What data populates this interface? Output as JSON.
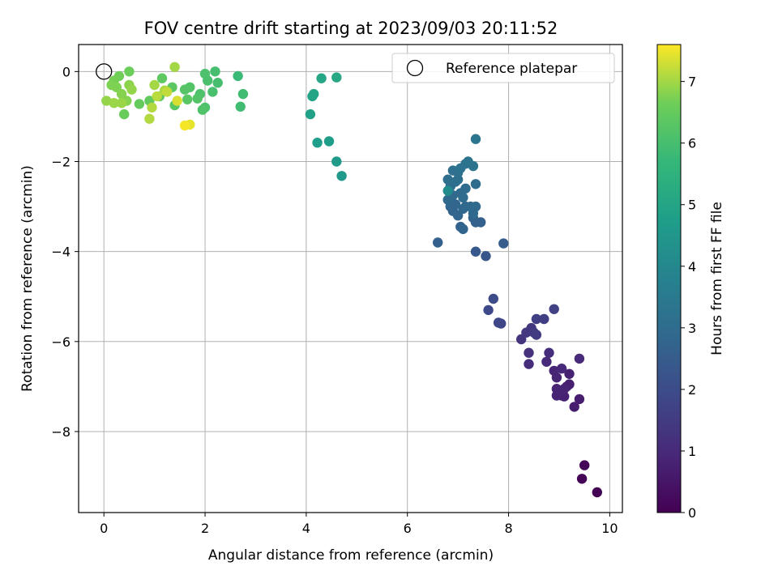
{
  "chart_data": {
    "type": "scatter",
    "title": "FOV centre drift starting at 2023/09/03 20:11:52",
    "xlabel": "Angular distance from reference (arcmin)",
    "ylabel": "Rotation from reference (arcmin)",
    "xlim": [
      -0.5,
      10.25
    ],
    "ylim": [
      -9.8,
      0.6
    ],
    "xticks": [
      0,
      2,
      4,
      6,
      8,
      10
    ],
    "yticks": [
      0,
      -2,
      -4,
      -6,
      -8
    ],
    "grid": true,
    "legend": {
      "label": "Reference platepar",
      "marker": "open-circle",
      "placement": "top-right"
    },
    "reference_point": {
      "x": 0,
      "y": 0
    },
    "colorbar": {
      "label": "Hours from first FF file",
      "colormap": "viridis",
      "range": [
        0,
        7.6
      ],
      "ticks": [
        0,
        1,
        2,
        3,
        4,
        5,
        6,
        7
      ]
    },
    "series": [
      {
        "points": [
          [
            9.75,
            -9.35,
            0.0
          ],
          [
            9.45,
            -9.05,
            0.05
          ],
          [
            9.5,
            -8.75,
            0.1
          ],
          [
            9.3,
            -7.45,
            0.7
          ],
          [
            9.4,
            -7.28,
            0.7
          ],
          [
            9.2,
            -6.95,
            0.75
          ],
          [
            9.15,
            -7.0,
            0.75
          ],
          [
            9.2,
            -6.72,
            0.8
          ],
          [
            9.05,
            -7.2,
            0.8
          ],
          [
            9.1,
            -7.22,
            0.8
          ],
          [
            8.95,
            -7.2,
            0.85
          ],
          [
            8.95,
            -7.05,
            0.85
          ],
          [
            9.1,
            -7.05,
            0.85
          ],
          [
            8.9,
            -6.65,
            0.9
          ],
          [
            8.95,
            -6.8,
            0.9
          ],
          [
            9.05,
            -6.6,
            0.95
          ],
          [
            8.75,
            -6.45,
            1.0
          ],
          [
            9.4,
            -6.38,
            1.0
          ],
          [
            8.8,
            -6.25,
            1.1
          ],
          [
            8.4,
            -6.5,
            1.1
          ],
          [
            8.4,
            -6.25,
            1.2
          ],
          [
            8.25,
            -5.95,
            1.3
          ],
          [
            8.35,
            -5.8,
            1.35
          ],
          [
            8.45,
            -5.7,
            1.4
          ],
          [
            8.55,
            -5.85,
            1.5
          ],
          [
            8.5,
            -5.8,
            1.5
          ],
          [
            8.7,
            -5.5,
            1.6
          ],
          [
            8.55,
            -5.5,
            1.6
          ],
          [
            8.9,
            -5.28,
            1.7
          ],
          [
            7.85,
            -5.6,
            1.8
          ],
          [
            7.8,
            -5.58,
            1.85
          ],
          [
            7.6,
            -5.3,
            1.9
          ],
          [
            7.7,
            -5.05,
            1.95
          ],
          [
            7.55,
            -4.1,
            2.3
          ],
          [
            7.35,
            -4.0,
            2.4
          ],
          [
            7.9,
            -3.82,
            2.5
          ],
          [
            6.6,
            -3.8,
            2.6
          ],
          [
            7.45,
            -3.35,
            2.6
          ],
          [
            7.35,
            -3.35,
            2.65
          ],
          [
            7.3,
            -3.25,
            2.7
          ],
          [
            7.05,
            -3.45,
            2.7
          ],
          [
            7.1,
            -3.5,
            2.75
          ],
          [
            6.9,
            -3.1,
            2.75
          ],
          [
            6.85,
            -3.0,
            2.8
          ],
          [
            6.95,
            -2.95,
            2.8
          ],
          [
            7.0,
            -3.2,
            2.8
          ],
          [
            7.1,
            -3.05,
            2.85
          ],
          [
            7.15,
            -3.0,
            2.85
          ],
          [
            7.25,
            -3.0,
            2.9
          ],
          [
            7.35,
            -3.0,
            2.9
          ],
          [
            7.3,
            -3.15,
            2.9
          ],
          [
            6.8,
            -2.85,
            2.9
          ],
          [
            6.9,
            -2.75,
            2.95
          ],
          [
            7.05,
            -2.7,
            2.95
          ],
          [
            7.15,
            -2.6,
            3.0
          ],
          [
            7.1,
            -2.8,
            3.0
          ],
          [
            6.85,
            -2.55,
            3.0
          ],
          [
            7.35,
            -2.5,
            3.05
          ],
          [
            6.95,
            -2.45,
            3.05
          ],
          [
            7.0,
            -2.4,
            3.1
          ],
          [
            6.8,
            -2.4,
            3.1
          ],
          [
            6.9,
            -2.2,
            3.15
          ],
          [
            7.0,
            -2.25,
            3.15
          ],
          [
            7.05,
            -2.15,
            3.2
          ],
          [
            7.15,
            -2.05,
            3.2
          ],
          [
            7.2,
            -2.0,
            3.25
          ],
          [
            7.3,
            -2.1,
            3.25
          ],
          [
            7.35,
            -1.5,
            3.35
          ],
          [
            6.8,
            -2.65,
            4.1
          ],
          [
            4.7,
            -2.32,
            4.6
          ],
          [
            4.6,
            -2.0,
            4.65
          ],
          [
            4.45,
            -1.55,
            4.7
          ],
          [
            4.22,
            -1.58,
            4.75
          ],
          [
            4.08,
            -0.95,
            4.85
          ],
          [
            4.12,
            -0.55,
            4.95
          ],
          [
            4.15,
            -0.5,
            5.0
          ],
          [
            4.3,
            -0.15,
            5.05
          ],
          [
            4.6,
            -0.13,
            5.1
          ],
          [
            2.65,
            -0.1,
            5.8
          ],
          [
            2.75,
            -0.5,
            5.9
          ],
          [
            2.7,
            -0.78,
            5.9
          ],
          [
            2.2,
            -0.0,
            6.0
          ],
          [
            2.25,
            -0.25,
            6.0
          ],
          [
            2.15,
            -0.45,
            6.05
          ],
          [
            2.05,
            -0.2,
            6.05
          ],
          [
            2.0,
            -0.05,
            6.1
          ],
          [
            2.0,
            -0.8,
            6.1
          ],
          [
            1.9,
            -0.5,
            6.1
          ],
          [
            1.95,
            -0.85,
            6.15
          ],
          [
            1.85,
            -0.6,
            6.2
          ],
          [
            1.7,
            -0.35,
            6.2
          ],
          [
            1.6,
            -0.4,
            6.25
          ],
          [
            1.65,
            -0.62,
            6.3
          ],
          [
            1.4,
            -0.75,
            6.3
          ],
          [
            1.35,
            -0.35,
            6.35
          ],
          [
            1.1,
            -0.55,
            6.4
          ],
          [
            1.15,
            -0.15,
            6.4
          ],
          [
            0.9,
            -0.65,
            6.45
          ],
          [
            0.7,
            -0.72,
            6.5
          ],
          [
            0.4,
            -0.95,
            6.55
          ],
          [
            0.5,
            -0.0,
            6.6
          ],
          [
            0.3,
            -0.1,
            6.65
          ],
          [
            0.2,
            -0.2,
            6.7
          ],
          [
            0.25,
            -0.35,
            6.75
          ],
          [
            0.15,
            -0.3,
            6.75
          ],
          [
            0.35,
            -0.5,
            6.8
          ],
          [
            0.45,
            -0.65,
            6.8
          ],
          [
            0.5,
            -0.3,
            6.85
          ],
          [
            0.55,
            -0.4,
            6.9
          ],
          [
            0.05,
            -0.65,
            6.9
          ],
          [
            0.2,
            -0.7,
            6.95
          ],
          [
            0.35,
            -0.7,
            6.95
          ],
          [
            1.4,
            0.1,
            7.0
          ],
          [
            1.0,
            -0.3,
            7.0
          ],
          [
            1.2,
            -0.42,
            7.05
          ],
          [
            0.95,
            -0.8,
            7.1
          ],
          [
            0.9,
            -1.05,
            7.1
          ],
          [
            1.05,
            -0.55,
            7.15
          ],
          [
            1.25,
            -0.45,
            7.2
          ],
          [
            1.45,
            -0.65,
            7.35
          ],
          [
            1.7,
            -1.18,
            7.45
          ],
          [
            1.6,
            -1.2,
            7.55
          ]
        ]
      }
    ]
  }
}
